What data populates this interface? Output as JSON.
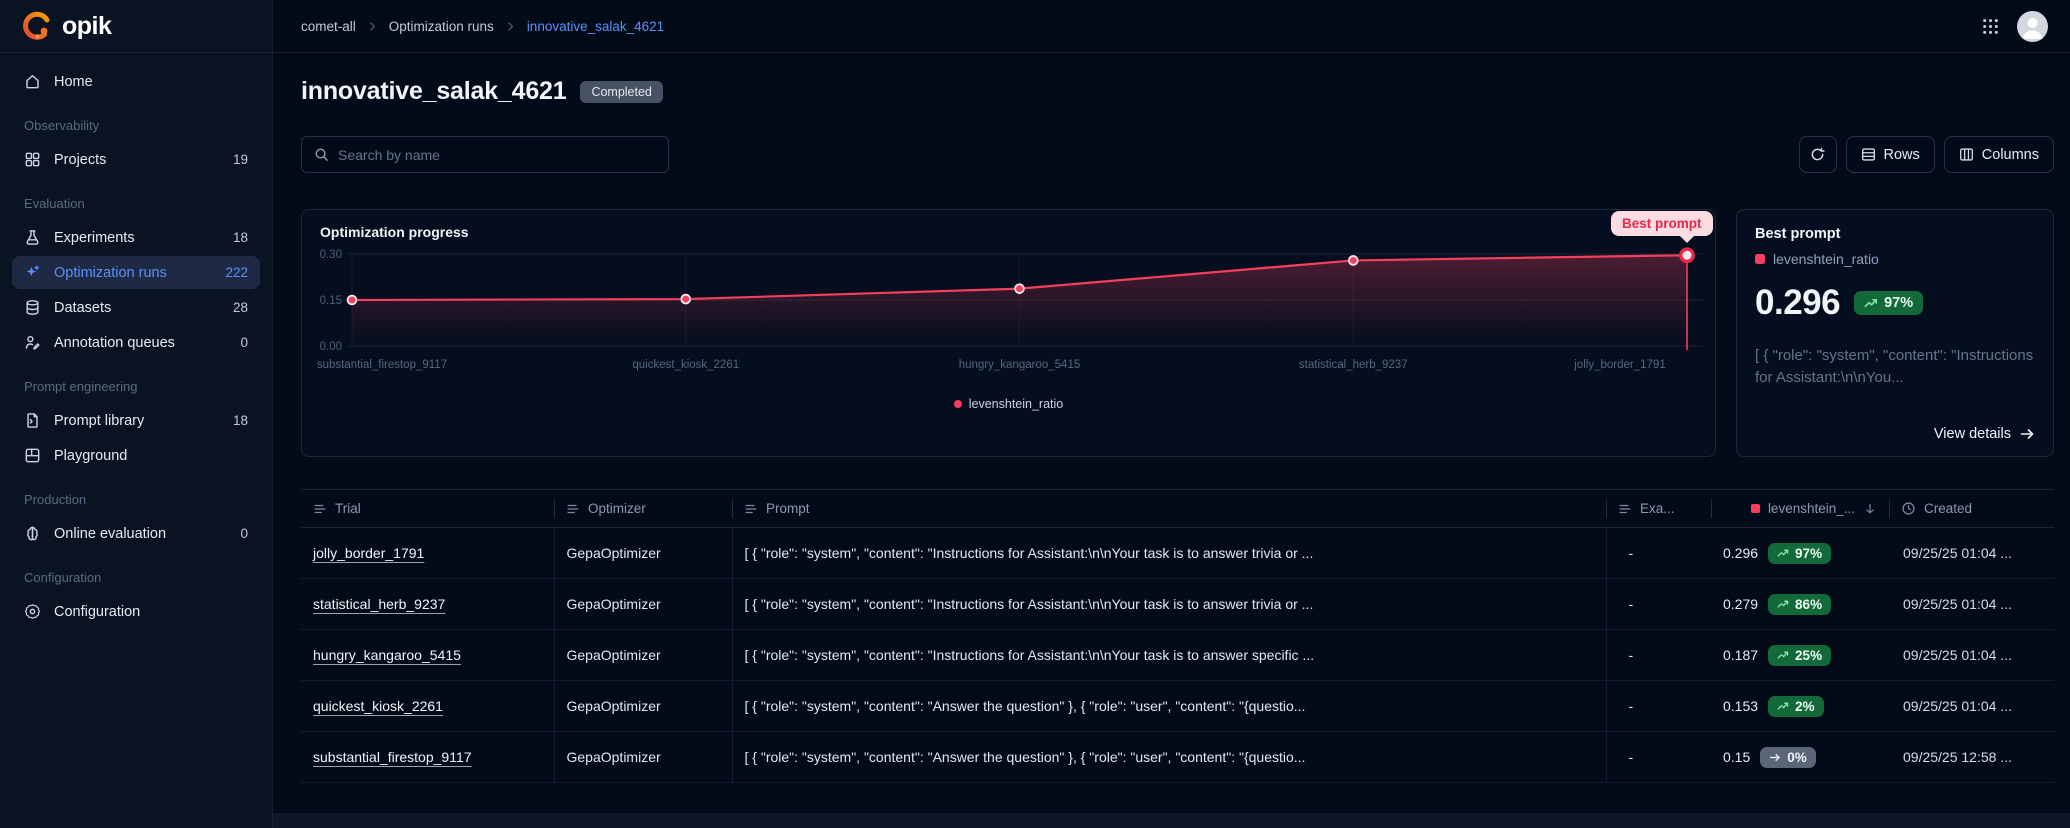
{
  "brand": {
    "logo_text": "opik"
  },
  "topbar": {
    "breadcrumb": [
      "comet-all",
      "Optimization runs",
      "innovative_salak_4621"
    ]
  },
  "sidebar": {
    "sections": [
      {
        "label": "",
        "items": [
          {
            "icon": "home",
            "label": "Home",
            "count": ""
          }
        ]
      },
      {
        "label": "Observability",
        "items": [
          {
            "icon": "projects",
            "label": "Projects",
            "count": "19"
          }
        ]
      },
      {
        "label": "Evaluation",
        "items": [
          {
            "icon": "experiments",
            "label": "Experiments",
            "count": "18"
          },
          {
            "icon": "optimization",
            "label": "Optimization runs",
            "count": "222",
            "active": true
          },
          {
            "icon": "datasets",
            "label": "Datasets",
            "count": "28"
          },
          {
            "icon": "annotation",
            "label": "Annotation queues",
            "count": "0"
          }
        ]
      },
      {
        "label": "Prompt engineering",
        "items": [
          {
            "icon": "prompt-library",
            "label": "Prompt library",
            "count": "18"
          },
          {
            "icon": "playground",
            "label": "Playground",
            "count": ""
          }
        ]
      },
      {
        "label": "Production",
        "items": [
          {
            "icon": "online-evaluation",
            "label": "Online evaluation",
            "count": "0"
          }
        ]
      },
      {
        "label": "Configuration",
        "items": [
          {
            "icon": "configuration",
            "label": "Configuration",
            "count": ""
          }
        ]
      }
    ]
  },
  "page": {
    "title": "innovative_salak_4621",
    "status_badge": "Completed"
  },
  "toolbar": {
    "search_placeholder": "Search by name",
    "rows_label": "Rows",
    "columns_label": "Columns"
  },
  "chart_data": {
    "type": "line",
    "title": "Optimization progress",
    "x": [
      "substantial_firestop_9117",
      "quickest_kiosk_2261",
      "hungry_kangaroo_5415",
      "statistical_herb_9237",
      "jolly_border_1791"
    ],
    "series": [
      {
        "name": "levenshtein_ratio",
        "color": "#F43F5E",
        "values": [
          0.15,
          0.153,
          0.187,
          0.279,
          0.296
        ]
      }
    ],
    "ylim": [
      0,
      0.3
    ],
    "yticks": [
      "0.00",
      "0.15",
      "0.30"
    ],
    "grid": true,
    "legend_position": "bottom",
    "annotation": {
      "label": "Best prompt",
      "point_index": 4
    }
  },
  "best_prompt": {
    "title": "Best prompt",
    "metric_name": "levenshtein_ratio",
    "value": "0.296",
    "delta": "97%",
    "delta_dir": "up",
    "prompt_preview": "[ { \"role\": \"system\", \"content\": \"Instructions for Assistant:\\n\\nYou...",
    "view_details_label": "View details"
  },
  "table": {
    "columns": [
      {
        "label": "Trial",
        "icon": "text",
        "align": "left"
      },
      {
        "label": "Optimizer",
        "icon": "text",
        "align": "left"
      },
      {
        "label": "Prompt",
        "icon": "text",
        "align": "left"
      },
      {
        "label": "Exa...",
        "icon": "text",
        "align": "left"
      },
      {
        "label": "levenshtein_...",
        "icon": "metric",
        "align": "right",
        "sort": "desc"
      },
      {
        "label": "Created",
        "icon": "clock",
        "align": "left"
      }
    ],
    "rows": [
      {
        "trial": "jolly_border_1791",
        "optimizer": "GepaOptimizer",
        "prompt": "[ { \"role\": \"system\", \"content\": \"Instructions for Assistant:\\n\\nYour task is to answer trivia or ...",
        "examples": "-",
        "score": "0.296",
        "delta": "97%",
        "delta_dir": "up",
        "created": "09/25/25 01:04 ..."
      },
      {
        "trial": "statistical_herb_9237",
        "optimizer": "GepaOptimizer",
        "prompt": "[ { \"role\": \"system\", \"content\": \"Instructions for Assistant:\\n\\nYour task is to answer trivia or ...",
        "examples": "-",
        "score": "0.279",
        "delta": "86%",
        "delta_dir": "up",
        "created": "09/25/25 01:04 ..."
      },
      {
        "trial": "hungry_kangaroo_5415",
        "optimizer": "GepaOptimizer",
        "prompt": "[ { \"role\": \"system\", \"content\": \"Instructions for Assistant:\\n\\nYour task is to answer specific ...",
        "examples": "-",
        "score": "0.187",
        "delta": "25%",
        "delta_dir": "up",
        "created": "09/25/25 01:04 ..."
      },
      {
        "trial": "quickest_kiosk_2261",
        "optimizer": "GepaOptimizer",
        "prompt": "[ { \"role\": \"system\", \"content\": \"Answer the question\" }, { \"role\": \"user\", \"content\": \"{questio...",
        "examples": "-",
        "score": "0.153",
        "delta": "2%",
        "delta_dir": "up",
        "created": "09/25/25 01:04 ..."
      },
      {
        "trial": "substantial_firestop_9117",
        "optimizer": "GepaOptimizer",
        "prompt": "[ { \"role\": \"system\", \"content\": \"Answer the question\" }, { \"role\": \"user\", \"content\": \"{questio...",
        "examples": "-",
        "score": "0.15",
        "delta": "0%",
        "delta_dir": "flat",
        "created": "09/25/25 12:58 ..."
      }
    ]
  }
}
